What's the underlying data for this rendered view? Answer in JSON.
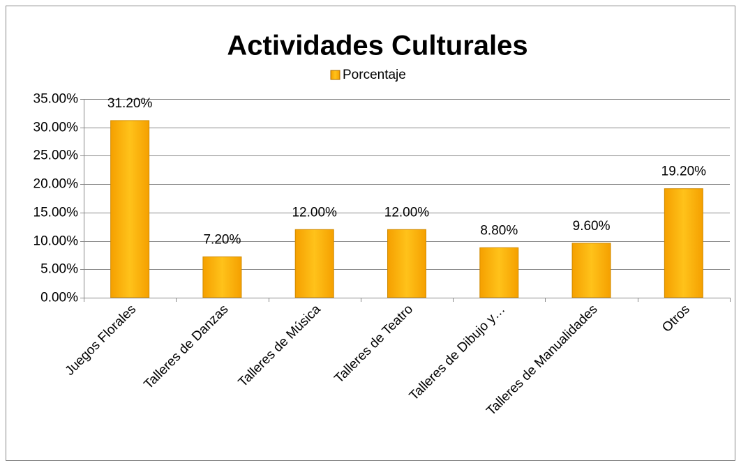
{
  "chart_data": {
    "type": "bar",
    "title": "Actividades Culturales",
    "categories": [
      "Juegos Florales",
      "Talleres de Danzas",
      "Talleres de Música",
      "Talleres de Teatro",
      "Talleres de Dibujo y…",
      "Talleres de Manualidades",
      "Otros"
    ],
    "series": [
      {
        "name": "Porcentaje",
        "color": "#f5a000",
        "values": [
          31.2,
          7.2,
          12.0,
          12.0,
          8.8,
          9.6,
          19.2
        ],
        "value_labels": [
          "31.20%",
          "7.20%",
          "12.00%",
          "12.00%",
          "8.80%",
          "9.60%",
          "19.20%"
        ]
      }
    ],
    "ylim": [
      0,
      35
    ],
    "yticks": [
      {
        "value": 0,
        "label": "0.00%"
      },
      {
        "value": 5,
        "label": "5.00%"
      },
      {
        "value": 10,
        "label": "10.00%"
      },
      {
        "value": 15,
        "label": "15.00%"
      },
      {
        "value": 20,
        "label": "20.00%"
      },
      {
        "value": 25,
        "label": "25.00%"
      },
      {
        "value": 30,
        "label": "30.00%"
      },
      {
        "value": 35,
        "label": "35.00%"
      }
    ],
    "grid": true,
    "legend": "top"
  }
}
